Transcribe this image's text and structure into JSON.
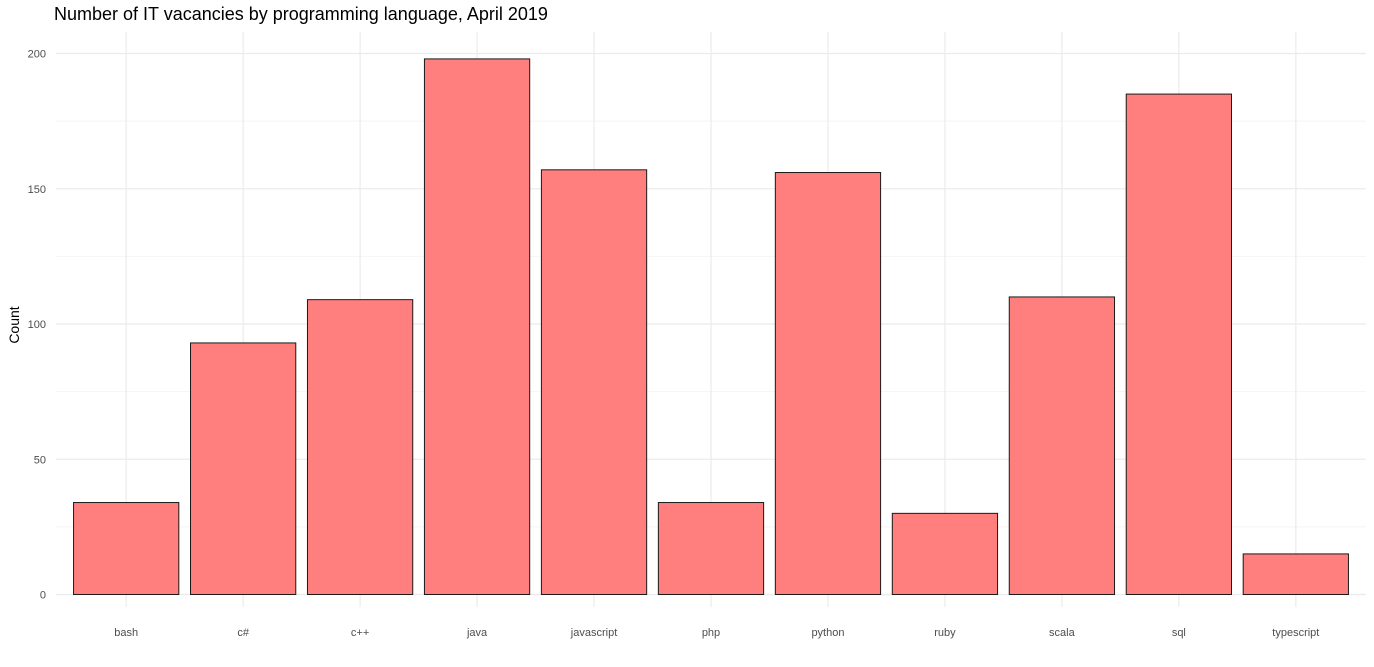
{
  "chart_data": {
    "type": "bar",
    "title": "Number of IT vacancies by programming language, April 2019",
    "xlabel": "",
    "ylabel": "Count",
    "categories": [
      "bash",
      "c#",
      "c++",
      "java",
      "javascript",
      "php",
      "python",
      "ruby",
      "scala",
      "sql",
      "typescript"
    ],
    "values": [
      34,
      93,
      109,
      198,
      157,
      34,
      156,
      30,
      110,
      185,
      15
    ],
    "ylim": [
      0,
      207.5
    ],
    "yticks": [
      0,
      50,
      100,
      150,
      200
    ],
    "grid": true,
    "legend": "none",
    "colors": {
      "bar_fill": "#ff7f7f",
      "bar_stroke": "#1a1a1a",
      "grid_major": "#ebebeb",
      "grid_minor": "#f4f4f4"
    }
  }
}
